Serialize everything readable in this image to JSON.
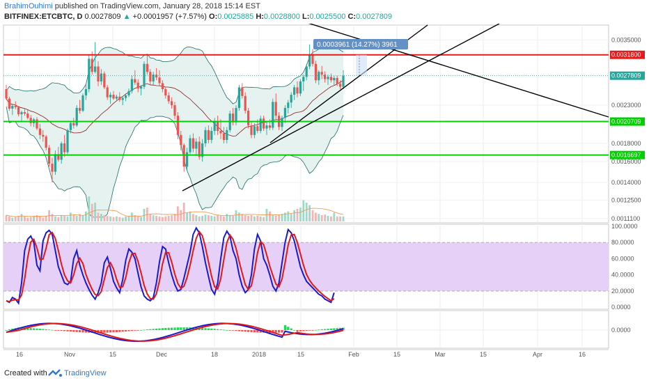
{
  "header": {
    "author": "BrahimOuhimi",
    "published_text": "published on TradingView.com, January 28, 2018 15:14 EST",
    "symbol": "BITFINEX:ETCBTC, D",
    "last": "0.0027809",
    "change_arrow": "▲",
    "change": "+0.0001957 (+7.57%)",
    "o_label": "O:",
    "o": "0.0025885",
    "h_label": "H:",
    "h": "0.0028800",
    "l_label": "L:",
    "l": "0.0025500",
    "c_label": "C:",
    "c": "0.0027809"
  },
  "footer": {
    "created_with": "Created with",
    "brand": "TradingView"
  },
  "colors": {
    "up_candle": "#26a69a",
    "down_candle": "#ef5350",
    "bollinger": "#1f6b66",
    "bollinger_fill": "#e6f2ef",
    "resistance": "#e31b1b",
    "support": "#00d000",
    "stoch_k": "#1a1acc",
    "stoch_d": "#e01818",
    "stoch_band": "#e6d0f7",
    "tag_blue": "#6491c5"
  },
  "chart_data": {
    "type": "candlestick",
    "price_axis_labels": [
      "0.0035000",
      "0.0031800",
      "0.0027809",
      "0.0023000",
      "0.0020709",
      "0.0018000",
      "0.0016697",
      "0.0016000",
      "0.0014000",
      "0.0012500",
      "0.0011100"
    ],
    "time_axis_labels": [
      "16",
      "Nov",
      "15",
      "Dec",
      "18",
      "2018",
      "15",
      "Feb",
      "15",
      "Mar",
      "15",
      "Apr",
      "16"
    ],
    "horizontal_levels": [
      {
        "value": 0.00318,
        "label": "0.0031800",
        "color": "red"
      },
      {
        "value": 0.0020709,
        "label": "0.0020709",
        "color": "green"
      },
      {
        "value": 0.0016697,
        "label": "0.0016697",
        "color": "green"
      }
    ],
    "last_price_tag": "0.0027809",
    "measure_label": "0.0003961 (14.27%) 3961",
    "candles_ohlc": [
      [
        0.00255,
        0.00262,
        0.00238,
        0.0024
      ],
      [
        0.0024,
        0.00243,
        0.00222,
        0.00225
      ],
      [
        0.00225,
        0.00232,
        0.00216,
        0.00229
      ],
      [
        0.00229,
        0.00236,
        0.00224,
        0.00227
      ],
      [
        0.00227,
        0.00229,
        0.00214,
        0.00217
      ],
      [
        0.00217,
        0.00222,
        0.00208,
        0.0022
      ],
      [
        0.0022,
        0.00226,
        0.00215,
        0.00218
      ],
      [
        0.00218,
        0.00223,
        0.0021,
        0.00212
      ],
      [
        0.00212,
        0.00216,
        0.00201,
        0.00205
      ],
      [
        0.00205,
        0.00212,
        0.002,
        0.0021
      ],
      [
        0.0021,
        0.00213,
        0.00196,
        0.00198
      ],
      [
        0.00198,
        0.00204,
        0.00185,
        0.0019
      ],
      [
        0.0019,
        0.00196,
        0.00182,
        0.00188
      ],
      [
        0.00188,
        0.0019,
        0.00172,
        0.00175
      ],
      [
        0.00175,
        0.00178,
        0.00155,
        0.00158
      ],
      [
        0.00158,
        0.00164,
        0.0014,
        0.0015
      ],
      [
        0.0015,
        0.00172,
        0.00147,
        0.00168
      ],
      [
        0.00168,
        0.00176,
        0.0016,
        0.00162
      ],
      [
        0.00162,
        0.00182,
        0.00158,
        0.0018
      ],
      [
        0.0018,
        0.0019,
        0.00165,
        0.0017
      ],
      [
        0.0017,
        0.00198,
        0.00168,
        0.00196
      ],
      [
        0.00196,
        0.00208,
        0.00192,
        0.00205
      ],
      [
        0.00205,
        0.00212,
        0.00198,
        0.00202
      ],
      [
        0.00202,
        0.0023,
        0.002,
        0.00226
      ],
      [
        0.00226,
        0.00238,
        0.00218,
        0.00222
      ],
      [
        0.00222,
        0.00248,
        0.0022,
        0.00245
      ],
      [
        0.00245,
        0.00262,
        0.00238,
        0.00255
      ],
      [
        0.00255,
        0.00318,
        0.0025,
        0.0031
      ],
      [
        0.0031,
        0.00325,
        0.0028,
        0.00285
      ],
      [
        0.00285,
        0.00345,
        0.00282,
        0.00295
      ],
      [
        0.00295,
        0.00305,
        0.0026,
        0.00268
      ],
      [
        0.00268,
        0.0029,
        0.00262,
        0.00282
      ],
      [
        0.00282,
        0.00286,
        0.00255,
        0.00258
      ],
      [
        0.00258,
        0.00262,
        0.00238,
        0.00242
      ],
      [
        0.00242,
        0.0025,
        0.00232,
        0.00246
      ],
      [
        0.00246,
        0.00252,
        0.00238,
        0.0024
      ],
      [
        0.0024,
        0.00246,
        0.00236,
        0.00243
      ],
      [
        0.00243,
        0.0025,
        0.00235,
        0.00238
      ],
      [
        0.00238,
        0.00244,
        0.0023,
        0.00241
      ],
      [
        0.00241,
        0.00248,
        0.00236,
        0.00245
      ],
      [
        0.00245,
        0.00256,
        0.00242,
        0.00252
      ],
      [
        0.00252,
        0.00278,
        0.00248,
        0.00272
      ],
      [
        0.00272,
        0.00288,
        0.00262,
        0.00266
      ],
      [
        0.00266,
        0.00272,
        0.0025,
        0.00256
      ],
      [
        0.00256,
        0.00262,
        0.00245,
        0.00259
      ],
      [
        0.00259,
        0.00305,
        0.00255,
        0.003
      ],
      [
        0.003,
        0.0032,
        0.0028,
        0.00285
      ],
      [
        0.00285,
        0.0029,
        0.00262,
        0.00268
      ],
      [
        0.00268,
        0.00285,
        0.00262,
        0.0028
      ],
      [
        0.0028,
        0.00292,
        0.0027,
        0.00275
      ],
      [
        0.00275,
        0.00288,
        0.0026,
        0.00265
      ],
      [
        0.00265,
        0.0027,
        0.0025,
        0.00255
      ],
      [
        0.00255,
        0.00258,
        0.0024,
        0.00245
      ],
      [
        0.00245,
        0.0025,
        0.00232,
        0.00236
      ],
      [
        0.00236,
        0.00242,
        0.00225,
        0.0023
      ],
      [
        0.0023,
        0.00235,
        0.0021,
        0.00215
      ],
      [
        0.00215,
        0.0022,
        0.00185,
        0.0019
      ],
      [
        0.0019,
        0.00195,
        0.00172,
        0.00178
      ],
      [
        0.00178,
        0.0018,
        0.0015,
        0.00155
      ],
      [
        0.00155,
        0.00175,
        0.00152,
        0.0017
      ],
      [
        0.0017,
        0.0019,
        0.00168,
        0.00186
      ],
      [
        0.00186,
        0.00192,
        0.0017,
        0.00174
      ],
      [
        0.00174,
        0.00186,
        0.00166,
        0.00182
      ],
      [
        0.00182,
        0.00188,
        0.00162,
        0.00165
      ],
      [
        0.00165,
        0.00185,
        0.0016,
        0.0018
      ],
      [
        0.0018,
        0.002,
        0.00176,
        0.00196
      ],
      [
        0.00196,
        0.00202,
        0.0018,
        0.00184
      ],
      [
        0.00184,
        0.002,
        0.0018,
        0.00195
      ],
      [
        0.00195,
        0.00212,
        0.0019,
        0.00208
      ],
      [
        0.00208,
        0.00215,
        0.0019,
        0.00195
      ],
      [
        0.00195,
        0.0021,
        0.00185,
        0.00192
      ],
      [
        0.00192,
        0.002,
        0.0018,
        0.00184
      ],
      [
        0.00184,
        0.002,
        0.0018,
        0.00196
      ],
      [
        0.00196,
        0.00222,
        0.00193,
        0.00218
      ],
      [
        0.00218,
        0.00226,
        0.00202,
        0.00206
      ],
      [
        0.00206,
        0.0023,
        0.00202,
        0.00226
      ],
      [
        0.00226,
        0.00262,
        0.00222,
        0.00258
      ],
      [
        0.00258,
        0.00265,
        0.0024,
        0.00244
      ],
      [
        0.00244,
        0.0025,
        0.00218,
        0.00222
      ],
      [
        0.00222,
        0.00226,
        0.00198,
        0.00202
      ],
      [
        0.00202,
        0.00208,
        0.00186,
        0.0019
      ],
      [
        0.0019,
        0.00205,
        0.00186,
        0.00201
      ],
      [
        0.00201,
        0.0021,
        0.00192,
        0.00195
      ],
      [
        0.00195,
        0.00215,
        0.00192,
        0.00211
      ],
      [
        0.00211,
        0.00215,
        0.00195,
        0.00198
      ],
      [
        0.00198,
        0.00206,
        0.0019,
        0.00202
      ],
      [
        0.00202,
        0.0021,
        0.00196,
        0.00199
      ],
      [
        0.00199,
        0.0024,
        0.00196,
        0.00235
      ],
      [
        0.00235,
        0.00248,
        0.0021,
        0.00215
      ],
      [
        0.00215,
        0.0022,
        0.00196,
        0.002
      ],
      [
        0.002,
        0.00215,
        0.00195,
        0.00212
      ],
      [
        0.00212,
        0.0023,
        0.00205,
        0.00226
      ],
      [
        0.00226,
        0.00238,
        0.00218,
        0.00234
      ],
      [
        0.00234,
        0.0025,
        0.00226,
        0.00246
      ],
      [
        0.00246,
        0.00262,
        0.00238,
        0.00258
      ],
      [
        0.00258,
        0.00268,
        0.00242,
        0.00248
      ],
      [
        0.00248,
        0.00272,
        0.00244,
        0.00268
      ],
      [
        0.00268,
        0.0028,
        0.00252,
        0.00276
      ],
      [
        0.00276,
        0.003,
        0.0027,
        0.00295
      ],
      [
        0.00295,
        0.0034,
        0.0029,
        0.00318
      ],
      [
        0.00318,
        0.0033,
        0.00295,
        0.003
      ],
      [
        0.003,
        0.00306,
        0.00265,
        0.0027
      ],
      [
        0.0027,
        0.00288,
        0.00262,
        0.00285
      ],
      [
        0.00285,
        0.00296,
        0.00272,
        0.0028
      ],
      [
        0.0028,
        0.00286,
        0.00266,
        0.00272
      ],
      [
        0.00272,
        0.0028,
        0.00262,
        0.00276
      ],
      [
        0.00276,
        0.00282,
        0.00266,
        0.0027
      ],
      [
        0.0027,
        0.00278,
        0.00262,
        0.00274
      ],
      [
        0.00274,
        0.00278,
        0.0026,
        0.00264
      ],
      [
        0.00264,
        0.0027,
        0.00255,
        0.00259
      ],
      [
        0.00259,
        0.00288,
        0.00255,
        0.00278
      ]
    ]
  }
}
